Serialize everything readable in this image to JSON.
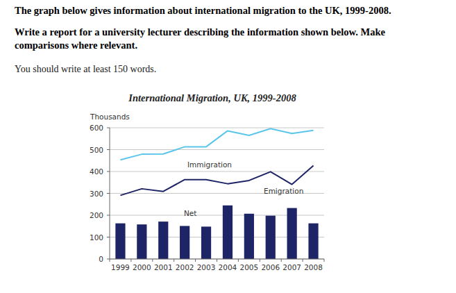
{
  "header": {
    "lines": [
      "The graph below gives information about international migration to the UK, 1999-2008.",
      "Write a report for a university lecturer describing the information shown below. Make",
      "comparisons where relevant."
    ],
    "instruction": "You should write at least 150 words."
  },
  "chart_data": {
    "type": "line",
    "title": "International Migration, UK, 1999-2008",
    "ylabel": "Thousands",
    "categories": [
      "1999",
      "2000",
      "2001",
      "2002",
      "2003",
      "2004",
      "2005",
      "2006",
      "2007",
      "2008"
    ],
    "series": [
      {
        "name": "Immigration",
        "type": "line",
        "color": "#5cc6ea",
        "values": [
          453,
          479,
          480,
          513,
          513,
          586,
          565,
          596,
          574,
          588
        ]
      },
      {
        "name": "Emigration",
        "type": "line",
        "color": "#1e2566",
        "values": [
          291,
          321,
          309,
          363,
          363,
          344,
          359,
          399,
          341,
          427
        ]
      },
      {
        "name": "Net",
        "type": "bar",
        "color": "#1e2566",
        "values": [
          163,
          158,
          171,
          151,
          148,
          245,
          207,
          198,
          233,
          163
        ]
      }
    ],
    "ylim": [
      0,
      600
    ],
    "yticks": [
      0,
      100,
      200,
      300,
      400,
      500,
      600
    ],
    "grid": true
  }
}
